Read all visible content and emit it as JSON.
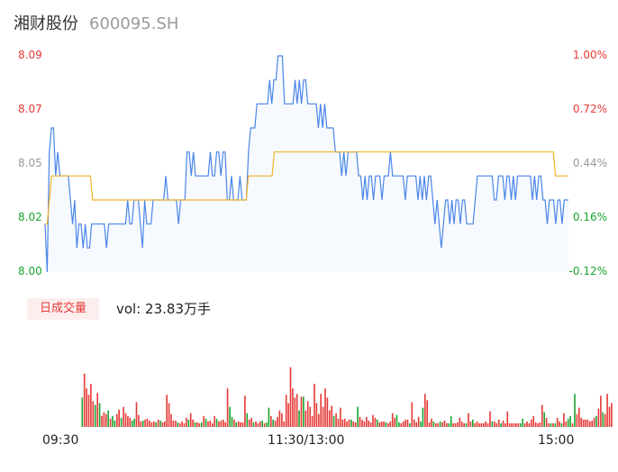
{
  "header": {
    "name": "湘财股份",
    "code": "600095.SH"
  },
  "colors": {
    "up": "#e53935",
    "down": "#1aa32e",
    "neutral": "#9a9a9a",
    "price_line": "#4a86e8",
    "avg_line": "#f0b429",
    "area": "#f6f9fe"
  },
  "y_left_labels": [
    "8.09",
    "8.07",
    "8.05",
    "8.02",
    "8.00"
  ],
  "y_right_labels": [
    "1.00%",
    "0.72%",
    "0.44%",
    "0.16%",
    "-0.12%"
  ],
  "volume": {
    "badge": "日成交量",
    "text": "vol: 23.83万手"
  },
  "x_labels": [
    "09:30",
    "11:30/13:00",
    "15:00"
  ],
  "chart_data": [
    {
      "type": "line",
      "x_ticks": [
        "09:30",
        "11:30/13:00",
        "15:00"
      ],
      "ylim": [
        8.0,
        8.09
      ],
      "y_ticks": [
        "8.09",
        "8.07",
        "8.05",
        "8.02",
        "8.00"
      ],
      "y2_ticks": [
        "1.00%",
        "0.72%",
        "0.44%",
        "0.16%",
        "-0.12%"
      ],
      "series": [
        {
          "values": [
            8.02,
            8.0,
            8.05,
            8.06,
            8.06,
            8.04,
            8.05,
            8.04,
            8.04,
            8.04,
            8.04,
            8.04,
            8.03,
            8.02,
            8.03,
            8.01,
            8.02,
            8.02,
            8.01,
            8.02,
            8.01,
            8.01,
            8.02,
            8.02,
            8.02,
            8.02,
            8.02,
            8.02,
            8.02,
            8.01,
            8.02,
            8.02,
            8.02,
            8.02,
            8.02,
            8.02,
            8.02,
            8.02,
            8.02,
            8.03,
            8.02,
            8.02,
            8.03,
            8.03,
            8.03,
            8.02,
            8.01,
            8.03,
            8.02,
            8.02,
            8.02,
            8.03,
            8.03,
            8.03,
            8.03,
            8.03,
            8.03,
            8.04,
            8.03,
            8.03,
            8.03,
            8.03,
            8.03,
            8.02,
            8.03,
            8.03,
            8.03,
            8.05,
            8.05,
            8.04,
            8.05,
            8.04,
            8.04,
            8.04,
            8.04,
            8.04,
            8.04,
            8.04,
            8.05,
            8.04,
            8.04,
            8.05,
            8.05,
            8.04,
            8.05,
            8.05,
            8.03,
            8.03,
            8.04,
            8.03,
            8.03,
            8.03,
            8.04,
            8.03,
            8.03,
            8.03,
            8.05,
            8.06,
            8.06,
            8.06,
            8.07,
            8.07,
            8.07,
            8.07,
            8.07,
            8.07,
            8.08,
            8.07,
            8.08,
            8.08,
            8.09,
            8.09,
            8.09,
            8.07,
            8.07,
            8.07,
            8.07,
            8.07,
            8.08,
            8.07,
            8.08,
            8.07,
            8.08,
            8.08,
            8.07,
            8.07,
            8.07,
            8.07,
            8.07,
            8.06,
            8.07,
            8.06,
            8.07,
            8.06,
            8.06,
            8.06,
            8.06,
            8.05,
            8.05,
            8.05,
            8.04,
            8.05,
            8.04,
            8.05,
            8.05,
            8.05,
            8.05,
            8.05,
            8.04,
            8.04,
            8.03,
            8.04,
            8.03,
            8.04,
            8.04,
            8.03,
            8.04,
            8.04,
            8.04,
            8.03,
            8.04,
            8.04,
            8.04,
            8.05,
            8.04,
            8.04,
            8.04,
            8.04,
            8.04,
            8.04,
            8.03,
            8.04,
            8.04,
            8.04,
            8.04,
            8.04,
            8.03,
            8.04,
            8.03,
            8.04,
            8.03,
            8.04,
            8.04,
            8.03,
            8.02,
            8.03,
            8.02,
            8.01,
            8.02,
            8.03,
            8.03,
            8.02,
            8.03,
            8.02,
            8.03,
            8.03,
            8.02,
            8.03,
            8.03,
            8.02,
            8.02,
            8.02,
            8.02,
            8.03,
            8.04,
            8.04,
            8.04,
            8.04,
            8.04,
            8.04,
            8.04,
            8.04,
            8.03,
            8.03,
            8.04,
            8.04,
            8.04,
            8.03,
            8.04,
            8.04,
            8.03,
            8.04,
            8.03,
            8.04,
            8.04,
            8.04,
            8.04,
            8.04,
            8.04,
            8.04,
            8.03,
            8.04,
            8.03,
            8.04,
            8.04,
            8.03,
            8.03,
            8.02,
            8.03,
            8.03,
            8.03,
            8.02,
            8.03,
            8.03,
            8.02,
            8.03,
            8.03,
            8.03
          ]
        },
        {
          "values": [
            8.02,
            8.02,
            8.03,
            8.04,
            8.04,
            8.04,
            8.04,
            8.04,
            8.04,
            8.04,
            8.04,
            8.04,
            8.04,
            8.04,
            8.04,
            8.04,
            8.04,
            8.04,
            8.04,
            8.04,
            8.04,
            8.04,
            8.03,
            8.03,
            8.03,
            8.03,
            8.03,
            8.03,
            8.03,
            8.03,
            8.03,
            8.03,
            8.03,
            8.03,
            8.03,
            8.03,
            8.03,
            8.03,
            8.03,
            8.03,
            8.03,
            8.03,
            8.03,
            8.03,
            8.03,
            8.03,
            8.03,
            8.03,
            8.03,
            8.03,
            8.03,
            8.03,
            8.03,
            8.03,
            8.03,
            8.03,
            8.03,
            8.03,
            8.03,
            8.03,
            8.03,
            8.03,
            8.03,
            8.03,
            8.03,
            8.03,
            8.03,
            8.03,
            8.03,
            8.03,
            8.03,
            8.03,
            8.03,
            8.03,
            8.03,
            8.03,
            8.03,
            8.03,
            8.03,
            8.03,
            8.03,
            8.03,
            8.03,
            8.03,
            8.03,
            8.03,
            8.03,
            8.03,
            8.03,
            8.03,
            8.03,
            8.03,
            8.03,
            8.03,
            8.04,
            8.04,
            8.04,
            8.04,
            8.04,
            8.04,
            8.04,
            8.04,
            8.04,
            8.04,
            8.04,
            8.04,
            8.05,
            8.05,
            8.05,
            8.05,
            8.05,
            8.05,
            8.05,
            8.05,
            8.05,
            8.05,
            8.05,
            8.05,
            8.05,
            8.05,
            8.05,
            8.05,
            8.05,
            8.05,
            8.05,
            8.05,
            8.05,
            8.05,
            8.05,
            8.05,
            8.05,
            8.05,
            8.05,
            8.05,
            8.05,
            8.05,
            8.05,
            8.05,
            8.05,
            8.05,
            8.05,
            8.05,
            8.05,
            8.05,
            8.05,
            8.05,
            8.05,
            8.05,
            8.05,
            8.05,
            8.05,
            8.05,
            8.05,
            8.05,
            8.05,
            8.05,
            8.05,
            8.05,
            8.05,
            8.05,
            8.05,
            8.05,
            8.05,
            8.05,
            8.05,
            8.05,
            8.05,
            8.05,
            8.05,
            8.05,
            8.05,
            8.05,
            8.05,
            8.05,
            8.05,
            8.05,
            8.05,
            8.05,
            8.05,
            8.05,
            8.05,
            8.05,
            8.05,
            8.05,
            8.05,
            8.05,
            8.05,
            8.05,
            8.05,
            8.05,
            8.05,
            8.05,
            8.05,
            8.05,
            8.05,
            8.05,
            8.05,
            8.05,
            8.05,
            8.05,
            8.05,
            8.05,
            8.05,
            8.05,
            8.05,
            8.05,
            8.05,
            8.05,
            8.05,
            8.05,
            8.05,
            8.05,
            8.05,
            8.05,
            8.05,
            8.05,
            8.05,
            8.05,
            8.05,
            8.05,
            8.05,
            8.05,
            8.05,
            8.05,
            8.05,
            8.05,
            8.05,
            8.05,
            8.05,
            8.05,
            8.05,
            8.05,
            8.05,
            8.05,
            8.05,
            8.05,
            8.04,
            8.04,
            8.04,
            8.04,
            8.04,
            8.04,
            8.04
          ]
        }
      ]
    },
    {
      "type": "bar",
      "volume_relative": [
        0.32,
        0.58,
        0.42,
        0.35,
        0.47,
        0.28,
        0.24,
        0.37,
        0.26,
        0.12,
        0.16,
        0.14,
        0.18,
        0.09,
        0.12,
        0.07,
        0.14,
        0.19,
        0.1,
        0.22,
        0.15,
        0.12,
        0.1,
        0.07,
        0.09,
        0.27,
        0.13,
        0.06,
        0.07,
        0.08,
        0.09,
        0.07,
        0.05,
        0.06,
        0.05,
        0.08,
        0.07,
        0.05,
        0.06,
        0.35,
        0.26,
        0.14,
        0.07,
        0.07,
        0.05,
        0.04,
        0.06,
        0.04,
        0.1,
        0.08,
        0.15,
        0.08,
        0.05,
        0.05,
        0.04,
        0.05,
        0.12,
        0.09,
        0.06,
        0.07,
        0.04,
        0.12,
        0.09,
        0.06,
        0.07,
        0.08,
        0.05,
        0.42,
        0.22,
        0.11,
        0.08,
        0.05,
        0.06,
        0.05,
        0.05,
        0.34,
        0.15,
        0.08,
        0.1,
        0.05,
        0.06,
        0.04,
        0.06,
        0.07,
        0.04,
        0.05,
        0.21,
        0.12,
        0.08,
        0.07,
        0.11,
        0.18,
        0.15,
        0.06,
        0.35,
        0.26,
        0.65,
        0.42,
        0.32,
        0.36,
        0.18,
        0.33,
        0.33,
        0.18,
        0.28,
        0.22,
        0.12,
        0.47,
        0.26,
        0.14,
        0.36,
        0.22,
        0.42,
        0.32,
        0.18,
        0.23,
        0.12,
        0.15,
        0.09,
        0.21,
        0.08,
        0.09,
        0.06,
        0.08,
        0.08,
        0.06,
        0.05,
        0.22,
        0.11,
        0.08,
        0.06,
        0.11,
        0.07,
        0.05,
        0.13,
        0.1,
        0.08,
        0.05,
        0.06,
        0.06,
        0.05,
        0.04,
        0.06,
        0.15,
        0.1,
        0.13,
        0.05,
        0.04,
        0.06,
        0.08,
        0.08,
        0.04,
        0.27,
        0.08,
        0.05,
        0.11,
        0.06,
        0.21,
        0.36,
        0.29,
        0.05,
        0.09,
        0.06,
        0.04,
        0.04,
        0.06,
        0.05,
        0.07,
        0.04,
        0.04,
        0.12,
        0.04,
        0.04,
        0.05,
        0.1,
        0.06,
        0.04,
        0.04,
        0.15,
        0.06,
        0.08,
        0.04,
        0.06,
        0.04,
        0.04,
        0.04,
        0.06,
        0.04,
        0.17,
        0.06,
        0.06,
        0.04,
        0.08,
        0.04,
        0.07,
        0.04,
        0.17,
        0.04,
        0.04,
        0.04,
        0.04,
        0.04,
        0.04,
        0.09,
        0.04,
        0.06,
        0.04,
        0.08,
        0.12,
        0.05,
        0.04,
        0.05,
        0.24,
        0.16,
        0.1,
        0.04,
        0.04,
        0.04,
        0.04,
        0.1,
        0.06,
        0.04,
        0.15,
        0.06,
        0.09,
        0.12,
        0.04,
        0.36,
        0.14,
        0.21,
        0.1,
        0.08,
        0.08,
        0.08,
        0.06,
        0.07,
        0.1,
        0.12,
        0.2,
        0.34,
        0.16,
        0.14,
        0.36,
        0.22,
        0.26
      ],
      "direction": [
        "d",
        "u",
        "u",
        "u",
        "u",
        "u",
        "d",
        "u",
        "d",
        "u",
        "u",
        "u",
        "d",
        "u",
        "d",
        "d",
        "u",
        "u",
        "d",
        "u",
        "u",
        "u",
        "u",
        "d",
        "d",
        "u",
        "u",
        "u",
        "d",
        "u",
        "u",
        "u",
        "u",
        "u",
        "d",
        "u",
        "d",
        "u",
        "u",
        "u",
        "u",
        "u",
        "u",
        "u",
        "d",
        "u",
        "u",
        "u",
        "u",
        "d",
        "u",
        "u",
        "d",
        "u",
        "u",
        "d",
        "u",
        "d",
        "u",
        "u",
        "u",
        "u",
        "d",
        "u",
        "u",
        "u",
        "u",
        "u",
        "d",
        "d",
        "u",
        "d",
        "u",
        "u",
        "u",
        "u",
        "d",
        "u",
        "u",
        "d",
        "u",
        "u",
        "u",
        "d",
        "u",
        "d",
        "d",
        "u",
        "d",
        "u",
        "u",
        "u",
        "u",
        "u",
        "u",
        "u",
        "u",
        "u",
        "u",
        "u",
        "d",
        "u",
        "d",
        "u",
        "u",
        "u",
        "u",
        "u",
        "u",
        "u",
        "u",
        "u",
        "u",
        "u",
        "u",
        "u",
        "d",
        "u",
        "u",
        "u",
        "u",
        "u",
        "u",
        "u",
        "d",
        "u",
        "u",
        "d",
        "u",
        "u",
        "u",
        "u",
        "u",
        "u",
        "u",
        "u",
        "d",
        "u",
        "u",
        "u",
        "d",
        "u",
        "u",
        "u",
        "u",
        "d",
        "d",
        "u",
        "u",
        "u",
        "u",
        "d",
        "u",
        "u",
        "u",
        "u",
        "d",
        "d",
        "u",
        "u",
        "u",
        "u",
        "d",
        "u",
        "u",
        "d",
        "u",
        "u",
        "u",
        "d",
        "d",
        "u",
        "u",
        "u",
        "u",
        "u",
        "u",
        "d",
        "u",
        "u",
        "d",
        "u",
        "u",
        "u",
        "u",
        "u",
        "u",
        "u",
        "u",
        "d",
        "u",
        "u",
        "u",
        "d",
        "u",
        "u",
        "u",
        "u",
        "u",
        "u",
        "u",
        "u",
        "d",
        "d",
        "u",
        "u",
        "u",
        "u",
        "u",
        "u",
        "u",
        "u",
        "u",
        "d",
        "u",
        "u",
        "d",
        "u",
        "d",
        "u",
        "u",
        "d",
        "u",
        "u",
        "d",
        "d",
        "u",
        "d",
        "u",
        "u",
        "u",
        "u",
        "u",
        "u",
        "u",
        "u",
        "u",
        "d",
        "u",
        "u",
        "d",
        "u",
        "u",
        "u",
        "u",
        "n"
      ]
    }
  ]
}
